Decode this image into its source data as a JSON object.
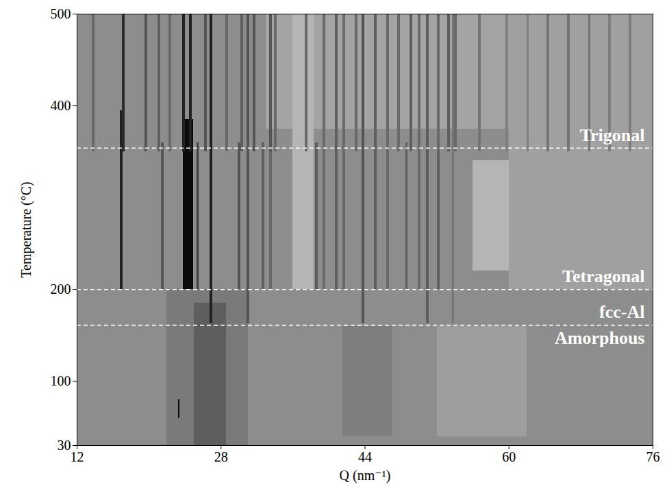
{
  "chart_data": {
    "type": "heatmap",
    "xlabel": "Q (nm⁻¹)",
    "ylabel": "Temperature (°C)",
    "xlim": [
      12,
      76
    ],
    "xticks": [
      12,
      28,
      44,
      60,
      76
    ],
    "ylim": [
      30,
      500
    ],
    "yticks": [
      30,
      100,
      200,
      400,
      500
    ],
    "intensity_range": [
      0,
      1
    ],
    "phases": [
      {
        "name": "Amorphous",
        "t": [
          30,
          161
        ]
      },
      {
        "name": "fcc-Al",
        "t": [
          161,
          200
        ]
      },
      {
        "name": "Tetragonal",
        "t": [
          200,
          354
        ]
      },
      {
        "name": "Trigonal",
        "t": [
          354,
          500
        ]
      }
    ],
    "cells": [
      {
        "q": [
          12,
          76
        ],
        "t": [
          30,
          500
        ],
        "i": 0.33
      },
      {
        "q": [
          33,
          76
        ],
        "t": [
          375,
          500
        ],
        "i": 0.22
      },
      {
        "q": [
          60,
          76
        ],
        "t": [
          200,
          500
        ],
        "i": 0.24
      },
      {
        "q": [
          36,
          38.3
        ],
        "t": [
          200,
          500
        ],
        "i": 0.14
      },
      {
        "q": [
          56,
          60
        ],
        "t": [
          220,
          340
        ],
        "i": 0.14
      },
      {
        "q": [
          52,
          62
        ],
        "t": [
          40,
          160
        ],
        "i": 0.25
      },
      {
        "q": [
          22,
          31
        ],
        "t": [
          30,
          200
        ],
        "i": 0.42
      },
      {
        "q": [
          25,
          28.6
        ],
        "t": [
          30,
          185
        ],
        "i": 0.55
      },
      {
        "q": [
          41.5,
          47
        ],
        "t": [
          40,
          160
        ],
        "i": 0.4
      },
      {
        "q": [
          23.3,
          23.45
        ],
        "t": [
          60,
          80
        ],
        "i": 0.95
      },
      {
        "q": [
          26.8,
          27.04
        ],
        "t": [
          163,
          500
        ],
        "i": 0.85
      },
      {
        "q": [
          30.91,
          31.15
        ],
        "t": [
          163,
          500
        ],
        "i": 0.6
      },
      {
        "q": [
          43.69,
          43.93
        ],
        "t": [
          163,
          500
        ],
        "i": 0.6
      },
      {
        "q": [
          50.84,
          51.08
        ],
        "t": [
          163,
          500
        ],
        "i": 0.55
      },
      {
        "q": [
          53.68,
          53.92
        ],
        "t": [
          163,
          500
        ],
        "i": 0.45
      },
      {
        "q": [
          16.83,
          17.07
        ],
        "t": [
          200,
          395
        ],
        "i": 0.85
      },
      {
        "q": [
          21.39,
          21.63
        ],
        "t": [
          200,
          360
        ],
        "i": 0.6
      },
      {
        "q": [
          23.8,
          24.9
        ],
        "t": [
          200,
          385
        ],
        "i": 0.95
      },
      {
        "q": [
          25.28,
          25.52
        ],
        "t": [
          200,
          360
        ],
        "i": 0.7
      },
      {
        "q": [
          29.92,
          30.16
        ],
        "t": [
          200,
          360
        ],
        "i": 0.6
      },
      {
        "q": [
          32.58,
          32.82
        ],
        "t": [
          200,
          360
        ],
        "i": 0.55
      },
      {
        "q": [
          33.42,
          33.66
        ],
        "t": [
          200,
          360
        ],
        "i": 0.5
      },
      {
        "q": [
          38.52,
          38.76
        ],
        "t": [
          200,
          360
        ],
        "i": 0.55
      },
      {
        "q": [
          39.35,
          39.59
        ],
        "t": [
          200,
          360
        ],
        "i": 0.5
      },
      {
        "q": [
          40.72,
          40.96
        ],
        "t": [
          200,
          360
        ],
        "i": 0.55
      },
      {
        "q": [
          41.56,
          41.8
        ],
        "t": [
          200,
          360
        ],
        "i": 0.5
      },
      {
        "q": [
          45.06,
          45.3
        ],
        "t": [
          200,
          360
        ],
        "i": 0.55
      },
      {
        "q": [
          46.43,
          46.67
        ],
        "t": [
          200,
          360
        ],
        "i": 0.5
      },
      {
        "q": [
          48.49,
          48.73
        ],
        "t": [
          200,
          360
        ],
        "i": 0.55
      },
      {
        "q": [
          49.93,
          50.17
        ],
        "t": [
          200,
          360
        ],
        "i": 0.5
      },
      {
        "q": [
          52.06,
          52.3
        ],
        "t": [
          200,
          360
        ],
        "i": 0.55
      },
      {
        "q": [
          13.71,
          13.95
        ],
        "t": [
          350,
          500
        ],
        "i": 0.5
      },
      {
        "q": [
          17.05,
          17.29
        ],
        "t": [
          350,
          500
        ],
        "i": 0.8
      },
      {
        "q": [
          19.57,
          19.81
        ],
        "t": [
          350,
          500
        ],
        "i": 0.6
      },
      {
        "q": [
          21.01,
          21.25
        ],
        "t": [
          350,
          500
        ],
        "i": 0.55
      },
      {
        "q": [
          22.23,
          22.47
        ],
        "t": [
          350,
          500
        ],
        "i": 0.5
      },
      {
        "q": [
          23.75,
          23.99
        ],
        "t": [
          350,
          500
        ],
        "i": 0.85
      },
      {
        "q": [
          24.51,
          24.75
        ],
        "t": [
          350,
          500
        ],
        "i": 0.85
      },
      {
        "q": [
          26.19,
          26.43
        ],
        "t": [
          350,
          500
        ],
        "i": 0.6
      },
      {
        "q": [
          28.55,
          28.79
        ],
        "t": [
          350,
          500
        ],
        "i": 0.5
      },
      {
        "q": [
          30.22,
          30.46
        ],
        "t": [
          350,
          500
        ],
        "i": 0.55
      },
      {
        "q": [
          31.59,
          31.83
        ],
        "t": [
          350,
          500
        ],
        "i": 0.6
      },
      {
        "q": [
          33.42,
          33.66
        ],
        "t": [
          350,
          500
        ],
        "i": 0.6
      },
      {
        "q": [
          33.95,
          34.19
        ],
        "t": [
          350,
          500
        ],
        "i": 0.5
      },
      {
        "q": [
          37.37,
          37.61
        ],
        "t": [
          350,
          500
        ],
        "i": 0.5
      },
      {
        "q": [
          39.35,
          39.59
        ],
        "t": [
          350,
          500
        ],
        "i": 0.5
      },
      {
        "q": [
          40.72,
          40.96
        ],
        "t": [
          350,
          500
        ],
        "i": 0.55
      },
      {
        "q": [
          41.56,
          41.8
        ],
        "t": [
          350,
          500
        ],
        "i": 0.5
      },
      {
        "q": [
          42.93,
          43.17
        ],
        "t": [
          350,
          500
        ],
        "i": 0.5
      },
      {
        "q": [
          45.06,
          45.3
        ],
        "t": [
          350,
          500
        ],
        "i": 0.55
      },
      {
        "q": [
          46.43,
          46.67
        ],
        "t": [
          350,
          500
        ],
        "i": 0.5
      },
      {
        "q": [
          47.65,
          47.89
        ],
        "t": [
          350,
          500
        ],
        "i": 0.5
      },
      {
        "q": [
          49.02,
          49.26
        ],
        "t": [
          350,
          500
        ],
        "i": 0.55
      },
      {
        "q": [
          49.93,
          50.17
        ],
        "t": [
          350,
          500
        ],
        "i": 0.5
      },
      {
        "q": [
          52.06,
          52.3
        ],
        "t": [
          350,
          500
        ],
        "i": 0.5
      },
      {
        "q": [
          53.2,
          53.44
        ],
        "t": [
          350,
          500
        ],
        "i": 0.55
      },
      {
        "q": [
          53.96,
          54.2
        ],
        "t": [
          350,
          500
        ],
        "i": 0.5
      },
      {
        "q": [
          56.63,
          56.87
        ],
        "t": [
          350,
          500
        ],
        "i": 0.45
      },
      {
        "q": [
          59.67,
          59.91
        ],
        "t": [
          350,
          500
        ],
        "i": 0.4
      },
      {
        "q": [
          61.96,
          62.2
        ],
        "t": [
          350,
          500
        ],
        "i": 0.4
      },
      {
        "q": [
          64.24,
          64.48
        ],
        "t": [
          350,
          500
        ],
        "i": 0.45
      },
      {
        "q": [
          66.52,
          66.76
        ],
        "t": [
          350,
          500
        ],
        "i": 0.45
      },
      {
        "q": [
          68.81,
          69.05
        ],
        "t": [
          350,
          500
        ],
        "i": 0.45
      },
      {
        "q": [
          71.09,
          71.33
        ],
        "t": [
          350,
          500
        ],
        "i": 0.4
      },
      {
        "q": [
          73.37,
          73.61
        ],
        "t": [
          350,
          500
        ],
        "i": 0.4
      }
    ]
  }
}
